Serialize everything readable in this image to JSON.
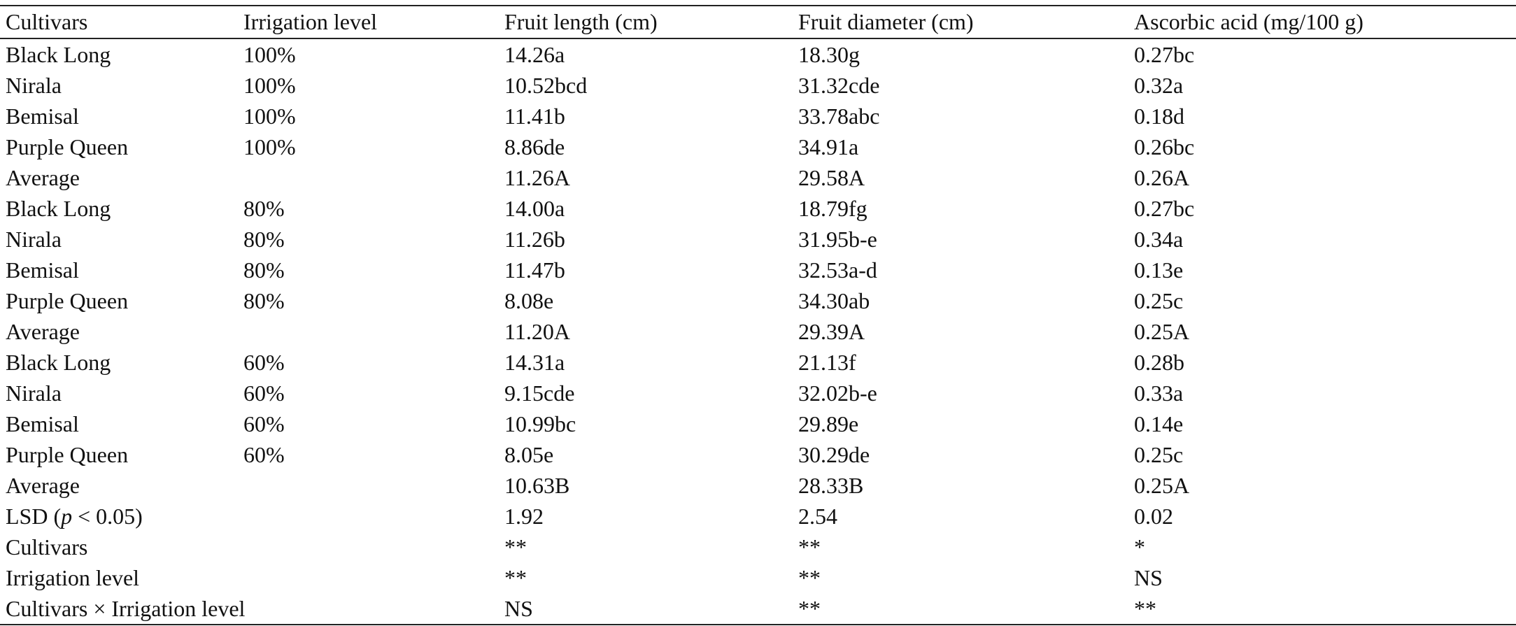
{
  "table": {
    "header": [
      "Cultivars",
      "Irrigation level",
      "Fruit length (cm)",
      "Fruit diameter (cm)",
      "Ascorbic acid (mg/100 g)"
    ],
    "rows": [
      [
        "Black Long",
        "100%",
        "14.26a",
        "18.30g",
        "0.27bc"
      ],
      [
        "Nirala",
        "100%",
        "10.52bcd",
        "31.32cde",
        "0.32a"
      ],
      [
        "Bemisal",
        "100%",
        "11.41b",
        "33.78abc",
        "0.18d"
      ],
      [
        "Purple Queen",
        "100%",
        "8.86de",
        "34.91a",
        "0.26bc"
      ],
      [
        "Average",
        null,
        "11.26A",
        "29.58A",
        "0.26A"
      ],
      [
        "Black Long",
        "80%",
        "14.00a",
        "18.79fg",
        "0.27bc"
      ],
      [
        "Nirala",
        "80%",
        "11.26b",
        "31.95b-e",
        "0.34a"
      ],
      [
        "Bemisal",
        "80%",
        "11.47b",
        "32.53a-d",
        "0.13e"
      ],
      [
        "Purple Queen",
        "80%",
        "8.08e",
        "34.30ab",
        "0.25c"
      ],
      [
        "Average",
        null,
        "11.20A",
        "29.39A",
        "0.25A"
      ],
      [
        "Black Long",
        "60%",
        "14.31a",
        "21.13f",
        "0.28b"
      ],
      [
        "Nirala",
        "60%",
        "9.15cde",
        "32.02b-e",
        "0.33a"
      ],
      [
        "Bemisal",
        "60%",
        "10.99bc",
        "29.89e",
        "0.14e"
      ],
      [
        "Purple Queen",
        "60%",
        "8.05e",
        "30.29de",
        "0.25c"
      ],
      [
        "Average",
        null,
        "10.63B",
        "28.33B",
        "0.25A"
      ],
      [
        {
          "before": "LSD (",
          "italic": "p",
          "after": " < 0.05)"
        },
        null,
        "1.92",
        "2.54",
        "0.02"
      ],
      [
        "Cultivars",
        null,
        "**",
        "**",
        "*"
      ],
      [
        "Irrigation level",
        null,
        "**",
        "**",
        "NS"
      ],
      [
        "Cultivars × Irrigation level",
        null,
        "NS",
        "**",
        "**"
      ]
    ]
  }
}
